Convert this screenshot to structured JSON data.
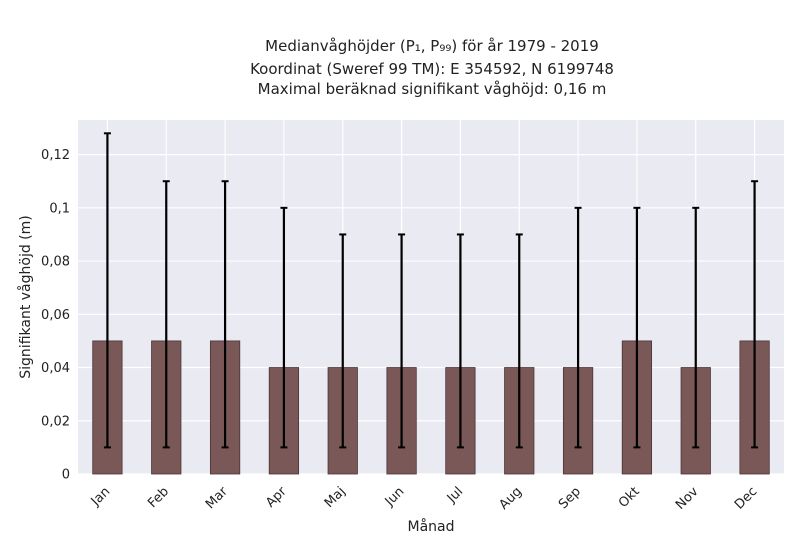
{
  "chart_data": {
    "type": "bar",
    "title_lines": [
      "Medianvåghöjder (P₁, P₉₉) för år 1979 - 2019",
      "Koordinat (Sweref 99 TM): E 354592, N 6199748",
      "Maximal beräknad signifikant våghöjd: 0,16 m"
    ],
    "xlabel": "Månad",
    "ylabel": "Signifikant våghöjd (m)",
    "categories": [
      "Jan",
      "Feb",
      "Mar",
      "Apr",
      "Maj",
      "Jun",
      "Jul",
      "Aug",
      "Sep",
      "Okt",
      "Nov",
      "Dec"
    ],
    "series": [
      {
        "values": [
          0.05,
          0.05,
          0.05,
          0.04,
          0.04,
          0.04,
          0.04,
          0.04,
          0.04,
          0.05,
          0.04,
          0.05
        ],
        "error_low": [
          0.01,
          0.01,
          0.01,
          0.01,
          0.01,
          0.01,
          0.01,
          0.01,
          0.01,
          0.01,
          0.01,
          0.01
        ],
        "error_high": [
          0.128,
          0.11,
          0.11,
          0.1,
          0.09,
          0.09,
          0.09,
          0.09,
          0.1,
          0.1,
          0.1,
          0.11
        ]
      }
    ],
    "ylim": [
      0,
      0.133
    ],
    "yticks": [
      0,
      0.02,
      0.04,
      0.06,
      0.08,
      0.1,
      0.12
    ],
    "ytick_labels": [
      "0",
      "0,02",
      "0,04",
      "0,06",
      "0,08",
      "0,1",
      "0,12"
    ],
    "grid": true,
    "colors": {
      "bar": "#7a5858",
      "bar_edge": "#4a3535",
      "error_bar": "#000000",
      "plot_bg": "#eaeaf2",
      "grid": "#ffffff"
    }
  }
}
